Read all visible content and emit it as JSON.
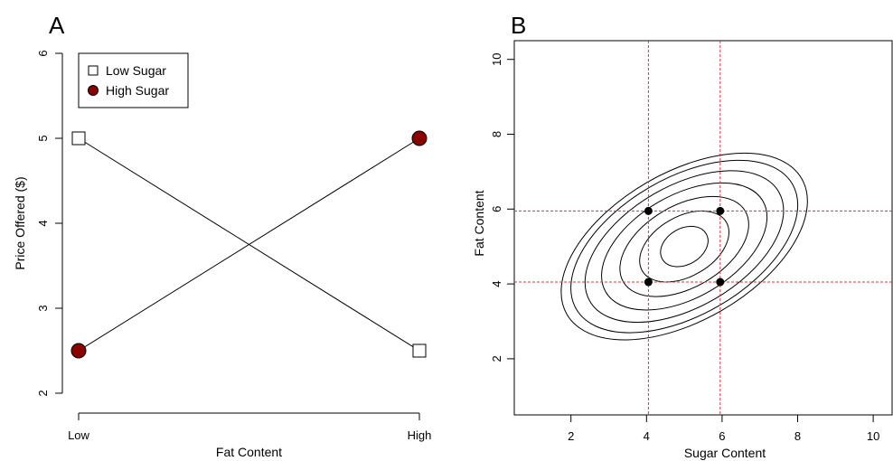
{
  "chart_data": [
    {
      "panel_label": "A",
      "type": "line",
      "xlabel": "Fat Content",
      "ylabel": "Price Offered ($)",
      "categories": [
        "Low",
        "High"
      ],
      "ylim": [
        2,
        6
      ],
      "yticks": [
        "2",
        "3",
        "4",
        "5",
        "6"
      ],
      "grid": false,
      "legend_position": "top-left",
      "series": [
        {
          "name": "Low Sugar",
          "values": [
            5.0,
            2.5
          ],
          "marker": "open-square",
          "color": "#000000",
          "fill": "#ffffff"
        },
        {
          "name": "High Sugar",
          "values": [
            2.5,
            5.0
          ],
          "marker": "filled-circle",
          "color": "#000000",
          "fill": "#8b0000"
        }
      ]
    },
    {
      "panel_label": "B",
      "type": "scatter",
      "xlabel": "Sugar Content",
      "ylabel": "Fat Content",
      "xlim": [
        0.5,
        10.5
      ],
      "ylim": [
        0.5,
        10.5
      ],
      "xticks": [
        "2",
        "4",
        "6",
        "8",
        "10"
      ],
      "yticks": [
        "2",
        "4",
        "6",
        "8",
        "10"
      ],
      "grid": false,
      "points": [
        {
          "x": 4.05,
          "y": 5.95
        },
        {
          "x": 5.95,
          "y": 5.95
        },
        {
          "x": 4.05,
          "y": 4.05
        },
        {
          "x": 5.95,
          "y": 4.05
        }
      ],
      "reference_lines": {
        "color": "#e0303a",
        "x": [
          4.05,
          5.95
        ],
        "y": [
          4.05,
          5.95
        ]
      },
      "contours": {
        "center": [
          5.0,
          5.0
        ],
        "shape": "tilted-ellipse",
        "levels": 7
      }
    }
  ]
}
